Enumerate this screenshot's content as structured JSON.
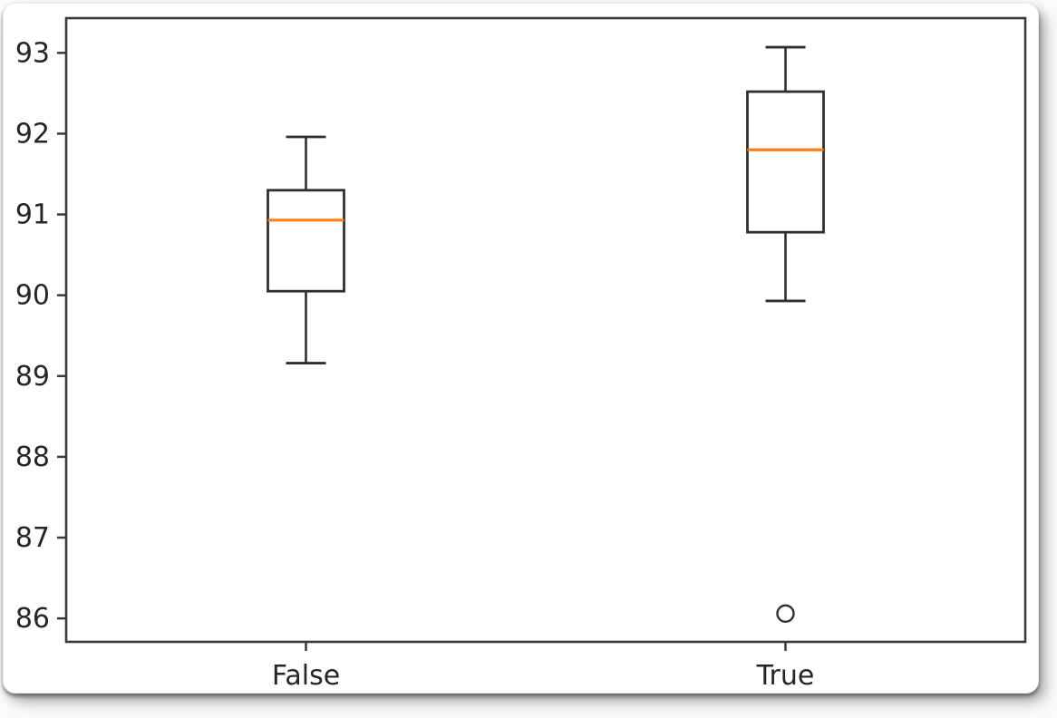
{
  "figure": {
    "title": "",
    "background_color": "#ffffff",
    "page_background": "#fbfbfb"
  },
  "chart_data": {
    "type": "boxplot",
    "title": "",
    "xlabel": "",
    "ylabel": "",
    "categories": [
      "False",
      "True"
    ],
    "series": [
      {
        "name": "False",
        "whisker_low": 89.16,
        "q1": 90.05,
        "median": 90.93,
        "q3": 91.3,
        "whisker_high": 91.96,
        "outliers": []
      },
      {
        "name": "True",
        "whisker_low": 89.93,
        "q1": 90.78,
        "median": 91.8,
        "q3": 92.52,
        "whisker_high": 93.07,
        "outliers": [
          86.06
        ]
      }
    ],
    "yticks": [
      86,
      87,
      88,
      89,
      90,
      91,
      92,
      93
    ],
    "ylim": [
      85.71,
      93.43
    ],
    "grid": false,
    "legend": "none",
    "colors": {
      "box_edge": "#2f2f2f",
      "whisker": "#2f2f2f",
      "median": "#ff7f0e",
      "frame": "#3a3a3a",
      "tick_label": "#262626",
      "plot_background": "#ffffff"
    }
  }
}
